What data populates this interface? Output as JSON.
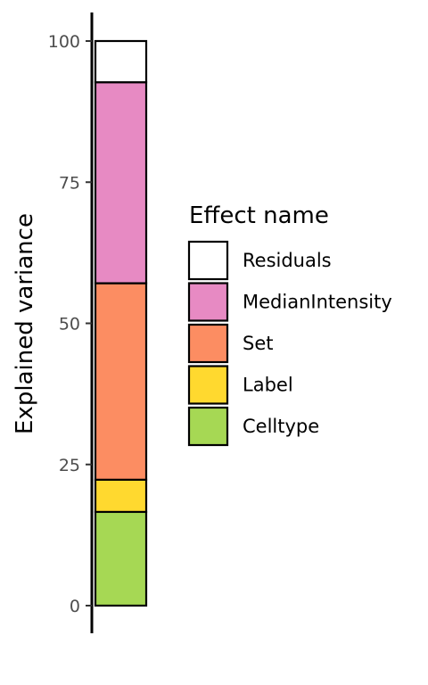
{
  "chart_data": {
    "type": "bar",
    "stacked": true,
    "categories": [
      ""
    ],
    "ylabel": "Explained variance",
    "ylim": [
      0,
      100
    ],
    "yticks": [
      0,
      25,
      50,
      75,
      100
    ],
    "grid": false,
    "legend": {
      "title": "Effect name",
      "placement": "right"
    },
    "series": [
      {
        "name": "Celltype",
        "values": [
          16.6
        ],
        "color": "#a6d854"
      },
      {
        "name": "Label",
        "values": [
          5.7
        ],
        "color": "#ffd92f"
      },
      {
        "name": "Set",
        "values": [
          34.8
        ],
        "color": "#fc8d62"
      },
      {
        "name": "MedianIntensity",
        "values": [
          35.6
        ],
        "color": "#e78ac3"
      },
      {
        "name": "Residuals",
        "values": [
          7.3
        ],
        "color": "#ffffff"
      }
    ]
  }
}
